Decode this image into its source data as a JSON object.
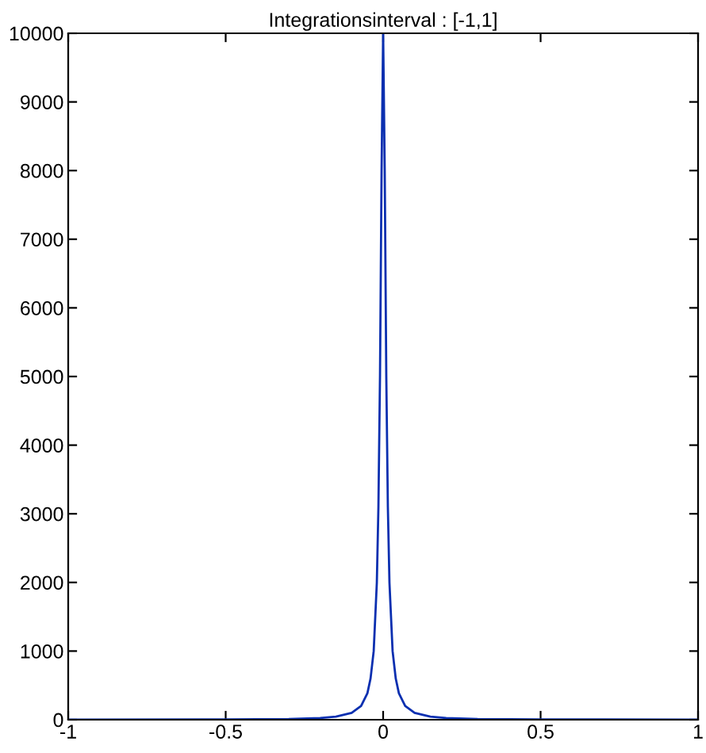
{
  "chart_data": {
    "type": "line",
    "title": "Integrationsinterval : [-1,1]",
    "x": [
      -1,
      -0.5,
      -0.3,
      -0.2,
      -0.15,
      -0.1,
      -0.07,
      -0.05,
      -0.04,
      -0.03,
      -0.02,
      -0.015,
      -0.01,
      -0.005,
      0,
      0.005,
      0.01,
      0.015,
      0.02,
      0.03,
      0.04,
      0.05,
      0.07,
      0.1,
      0.15,
      0.2,
      0.3,
      0.5,
      1
    ],
    "series": [
      {
        "color": "#0a2fb0",
        "values": [
          1,
          4,
          11,
          25,
          44,
          99,
          200,
          385,
          600,
          1000,
          2000,
          3100,
          5000,
          8000,
          10000,
          8000,
          5000,
          3100,
          2000,
          1000,
          600,
          385,
          200,
          99,
          44,
          25,
          11,
          4,
          1
        ]
      }
    ],
    "xlim": [
      -1,
      1
    ],
    "xticks": [
      -1,
      -0.5,
      0,
      0.5,
      1
    ],
    "ylim": [
      0,
      10000
    ],
    "yticks": [
      0,
      1000,
      2000,
      3000,
      4000,
      5000,
      6000,
      7000,
      8000,
      9000,
      10000
    ],
    "grid": false,
    "marker": "none",
    "line_style": "solid"
  }
}
